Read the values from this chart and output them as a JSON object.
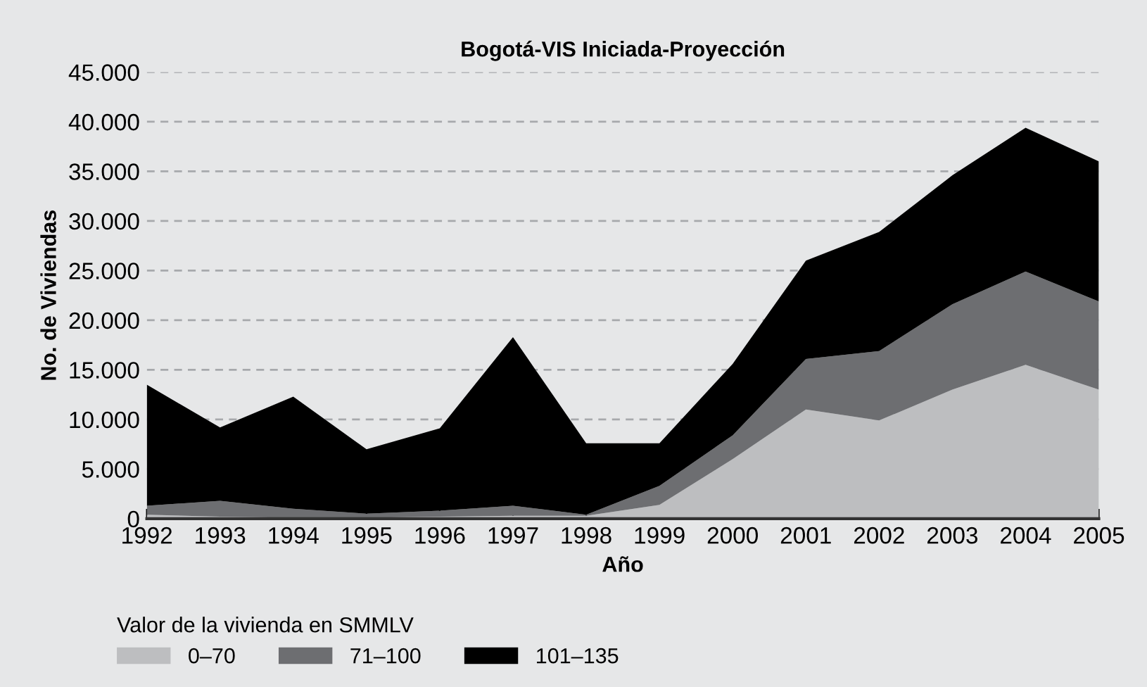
{
  "chart_data": {
    "type": "area",
    "stacked": true,
    "title": "Bogotá-VIS Iniciada-Proyección",
    "xlabel": "Año",
    "ylabel": "No. de Viviendas",
    "legend_title": "Valor de la vivienda en SMMLV",
    "legend": "bottom left",
    "x": [
      1992,
      1993,
      1994,
      1995,
      1996,
      1997,
      1998,
      1999,
      2000,
      2001,
      2002,
      2003,
      2004,
      2005
    ],
    "series": [
      {
        "name": "0–70",
        "color": "#bdbec0",
        "values": [
          400,
          200,
          100,
          100,
          200,
          300,
          300,
          1400,
          6000,
          11000,
          9900,
          13000,
          15500,
          13000
        ]
      },
      {
        "name": "71–100",
        "color": "#6d6e71",
        "values": [
          900,
          1600,
          900,
          400,
          600,
          1000,
          100,
          1900,
          2400,
          5100,
          7000,
          8600,
          9400,
          8900
        ]
      },
      {
        "name": "101–135",
        "color": "#000000",
        "values": [
          12200,
          7400,
          11300,
          6500,
          8300,
          17000,
          7200,
          4300,
          7200,
          9900,
          12000,
          13000,
          14500,
          14100
        ]
      }
    ],
    "xlim": [
      1992,
      2005
    ],
    "xticks": [
      1992,
      1993,
      1994,
      1995,
      1996,
      1997,
      1998,
      1999,
      2000,
      2001,
      2002,
      2003,
      2004,
      2005
    ],
    "ylim": [
      0,
      45000
    ],
    "yticks": [
      0,
      {
        "value": 5000,
        "label": "5.000"
      },
      {
        "value": 10000,
        "label": "10.000"
      },
      {
        "value": 15000,
        "label": "15.000"
      },
      {
        "value": 20000,
        "label": "20.000"
      },
      {
        "value": 25000,
        "label": "25.000"
      },
      {
        "value": 30000,
        "label": "30.000"
      },
      {
        "value": 35000,
        "label": "35.000"
      },
      {
        "value": 40000,
        "label": "40.000"
      },
      {
        "value": 45000,
        "label": "45.000"
      }
    ],
    "grid": "y",
    "line_style": "dashed"
  }
}
